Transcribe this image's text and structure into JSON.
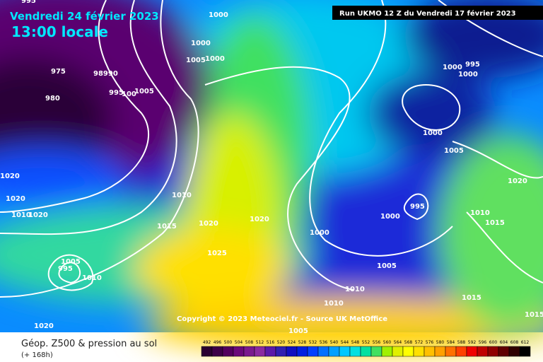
{
  "header": {
    "valid_date": "Vendredi 24 février 2023",
    "local_time": "13:00 locale",
    "run": "Run UKMO 12 Z du Vendredi 17 février 2023",
    "copyright": "Copyright © 2023 Meteociel.fr - Source UK MetOffice"
  },
  "isobar_labels": [
    "995",
    "975",
    "980",
    "98990",
    "995",
    "100",
    "1005",
    "1000",
    "1005",
    "1000",
    "1000",
    "1010",
    "1015",
    "1020",
    "1020",
    "1025",
    "1020",
    "1010",
    "1020",
    "1020",
    "1005",
    "995",
    "1010",
    "1020",
    "1000",
    "1000",
    "995",
    "1005",
    "1010",
    "1010",
    "1005",
    "1000",
    "1005",
    "1000",
    "1000",
    "995",
    "1020",
    "1010",
    "1015",
    "1015",
    "1015"
  ],
  "footer": {
    "field": "Géop. Z500 & pression au sol",
    "lead": "(+ 168h)"
  },
  "scale": {
    "labels": [
      492,
      496,
      500,
      504,
      508,
      512,
      516,
      520,
      524,
      528,
      532,
      536,
      540,
      544,
      548,
      552,
      556,
      560,
      564,
      568,
      572,
      576,
      580,
      584,
      588,
      592,
      596,
      600,
      604,
      608,
      612
    ],
    "colors": [
      "#2a0030",
      "#3d0048",
      "#52005e",
      "#6a0a7a",
      "#7a1a8e",
      "#8a2aa0",
      "#5a1aa8",
      "#3020b0",
      "#1010c0",
      "#0020e0",
      "#0040ff",
      "#0070ff",
      "#00a0ff",
      "#00c8ff",
      "#00e0e0",
      "#00e0a0",
      "#40e060",
      "#a0f000",
      "#e0f000",
      "#ffff00",
      "#ffe000",
      "#ffc000",
      "#ffa000",
      "#ff7000",
      "#ff4000",
      "#f00000",
      "#c00000",
      "#900000",
      "#600000",
      "#300000",
      "#000000"
    ]
  }
}
